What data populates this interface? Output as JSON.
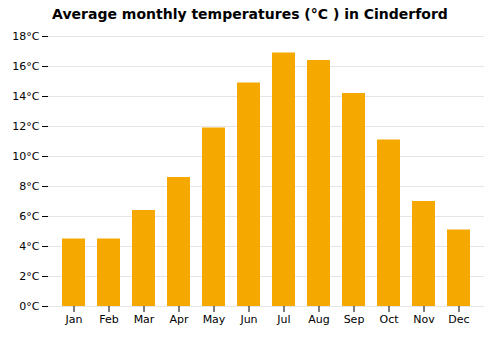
{
  "chart_data": {
    "type": "bar",
    "title": "Average monthly temperatures (°C ) in Cinderford",
    "categories": [
      "Jan",
      "Feb",
      "Mar",
      "Apr",
      "May",
      "Jun",
      "Jul",
      "Aug",
      "Sep",
      "Oct",
      "Nov",
      "Dec"
    ],
    "values": [
      4.5,
      4.5,
      6.4,
      8.6,
      11.9,
      14.9,
      16.9,
      16.4,
      14.2,
      11.1,
      7.0,
      5.1
    ],
    "color": "#F5A800",
    "ylim": [
      0,
      18
    ],
    "yticks": [
      {
        "value": 0,
        "label": "0°C"
      },
      {
        "value": 2,
        "label": "2°C"
      },
      {
        "value": 4,
        "label": "4°C"
      },
      {
        "value": 6,
        "label": "6°C"
      },
      {
        "value": 8,
        "label": "8°C"
      },
      {
        "value": 10,
        "label": "10°C"
      },
      {
        "value": 12,
        "label": "12°C"
      },
      {
        "value": 14,
        "label": "14°C"
      },
      {
        "value": 16,
        "label": "16°C"
      },
      {
        "value": 18,
        "label": "18°C"
      }
    ],
    "grid": true
  }
}
